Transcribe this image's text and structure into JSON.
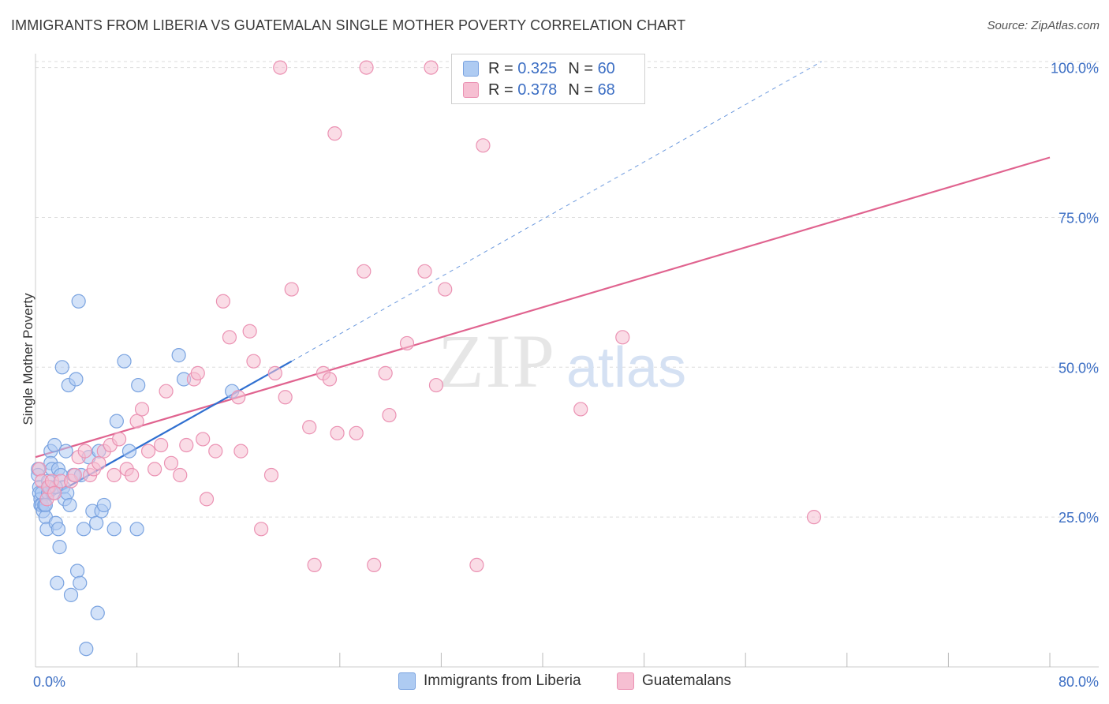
{
  "header": {
    "title": "IMMIGRANTS FROM LIBERIA VS GUATEMALAN SINGLE MOTHER POVERTY CORRELATION CHART",
    "source": "Source: ZipAtlas.com"
  },
  "watermark": {
    "zip": "ZIP",
    "atlas": "atlas"
  },
  "legend_top": [
    {
      "r_label": "R =",
      "r_value": "0.325",
      "n_label": "N =",
      "n_value": "60"
    },
    {
      "r_label": "R =",
      "r_value": "0.378",
      "n_label": "N =",
      "n_value": "68"
    }
  ],
  "legend_bottom": [
    {
      "label": "Immigrants from Liberia"
    },
    {
      "label": "Guatemalans"
    }
  ],
  "colors": {
    "blue_fill": "#aecbf2",
    "blue_stroke": "#7aa3e0",
    "blue_line": "#2f6fd0",
    "pink_fill": "#f6bfd2",
    "pink_stroke": "#eb92b3",
    "pink_line": "#e0638f",
    "axis_label": "#3d6fc4",
    "grid": "#dddddd"
  },
  "chart_data": {
    "type": "scatter",
    "title": "IMMIGRANTS FROM LIBERIA VS GUATEMALAN SINGLE MOTHER POVERTY CORRELATION CHART",
    "xlabel": "",
    "ylabel": "Single Mother Poverty",
    "xlim": [
      0,
      80
    ],
    "ylim": [
      0,
      101
    ],
    "x_tick_labels": [
      "0.0%",
      "80.0%"
    ],
    "y_ticks": [
      25,
      50,
      75,
      100
    ],
    "y_tick_labels": [
      "25.0%",
      "50.0%",
      "75.0%",
      "100.0%"
    ],
    "series": [
      {
        "name": "Immigrants from Liberia",
        "color": "blue",
        "r": 0.325,
        "n": 60,
        "trend": {
          "x": [
            0,
            20.2
          ],
          "y": [
            27.0,
            51.0
          ],
          "dashed_to": [
            62,
            101
          ]
        },
        "points": [
          [
            0.2,
            33
          ],
          [
            0.2,
            32
          ],
          [
            0.3,
            30
          ],
          [
            0.3,
            29
          ],
          [
            0.4,
            28
          ],
          [
            0.4,
            27
          ],
          [
            0.5,
            29
          ],
          [
            0.5,
            27
          ],
          [
            0.6,
            26
          ],
          [
            0.7,
            27
          ],
          [
            0.8,
            25
          ],
          [
            0.9,
            23
          ],
          [
            1.0,
            29
          ],
          [
            1.0,
            31
          ],
          [
            1.2,
            36
          ],
          [
            1.2,
            34
          ],
          [
            1.3,
            33
          ],
          [
            1.4,
            29
          ],
          [
            1.5,
            37
          ],
          [
            1.6,
            24
          ],
          [
            1.7,
            14
          ],
          [
            1.8,
            33
          ],
          [
            1.8,
            23
          ],
          [
            1.9,
            20
          ],
          [
            2.0,
            32
          ],
          [
            2.1,
            50
          ],
          [
            2.2,
            30
          ],
          [
            2.3,
            28
          ],
          [
            2.4,
            36
          ],
          [
            2.5,
            29
          ],
          [
            2.6,
            47
          ],
          [
            2.7,
            27
          ],
          [
            2.8,
            12
          ],
          [
            3.0,
            32
          ],
          [
            3.2,
            48
          ],
          [
            3.3,
            16
          ],
          [
            3.4,
            61
          ],
          [
            3.5,
            14
          ],
          [
            3.6,
            32
          ],
          [
            3.8,
            23
          ],
          [
            4.0,
            3
          ],
          [
            4.2,
            35
          ],
          [
            4.5,
            26
          ],
          [
            4.8,
            24
          ],
          [
            4.9,
            9
          ],
          [
            5.0,
            36
          ],
          [
            5.2,
            26
          ],
          [
            5.4,
            27
          ],
          [
            6.2,
            23
          ],
          [
            6.4,
            41
          ],
          [
            7.0,
            51
          ],
          [
            7.4,
            36
          ],
          [
            8.0,
            23
          ],
          [
            8.1,
            47
          ],
          [
            11.3,
            52
          ],
          [
            11.7,
            48
          ],
          [
            15.5,
            46
          ],
          [
            1.1,
            30
          ],
          [
            0.8,
            27
          ],
          [
            1.6,
            30
          ]
        ]
      },
      {
        "name": "Guatemalans",
        "color": "pink",
        "r": 0.378,
        "n": 68,
        "trend": {
          "x": [
            0,
            80
          ],
          "y": [
            35.0,
            85.0
          ]
        },
        "points": [
          [
            0.3,
            33
          ],
          [
            0.5,
            31
          ],
          [
            0.9,
            28
          ],
          [
            1.0,
            30
          ],
          [
            1.3,
            31
          ],
          [
            1.5,
            29
          ],
          [
            2.0,
            31
          ],
          [
            2.8,
            31
          ],
          [
            3.1,
            32
          ],
          [
            3.4,
            35
          ],
          [
            3.9,
            36
          ],
          [
            4.3,
            32
          ],
          [
            4.6,
            33
          ],
          [
            5.0,
            34
          ],
          [
            5.4,
            36
          ],
          [
            5.9,
            37
          ],
          [
            6.2,
            32
          ],
          [
            6.6,
            38
          ],
          [
            7.2,
            33
          ],
          [
            7.6,
            32
          ],
          [
            8.0,
            41
          ],
          [
            8.4,
            43
          ],
          [
            8.9,
            36
          ],
          [
            9.4,
            33
          ],
          [
            9.9,
            37
          ],
          [
            10.3,
            46
          ],
          [
            10.7,
            34
          ],
          [
            11.4,
            32
          ],
          [
            11.9,
            37
          ],
          [
            12.5,
            48
          ],
          [
            12.8,
            49
          ],
          [
            13.2,
            38
          ],
          [
            13.5,
            28
          ],
          [
            14.2,
            36
          ],
          [
            14.8,
            61
          ],
          [
            15.3,
            55
          ],
          [
            16.0,
            45
          ],
          [
            16.2,
            36
          ],
          [
            16.9,
            56
          ],
          [
            17.2,
            51
          ],
          [
            17.8,
            23
          ],
          [
            18.6,
            32
          ],
          [
            18.9,
            49
          ],
          [
            19.7,
            45
          ],
          [
            20.2,
            63
          ],
          [
            21.6,
            40
          ],
          [
            22.0,
            17
          ],
          [
            22.7,
            49
          ],
          [
            23.2,
            48
          ],
          [
            23.6,
            89
          ],
          [
            23.8,
            39
          ],
          [
            25.3,
            39
          ],
          [
            25.9,
            66
          ],
          [
            26.1,
            100
          ],
          [
            26.7,
            17
          ],
          [
            27.6,
            49
          ],
          [
            27.9,
            42
          ],
          [
            29.3,
            54
          ],
          [
            30.7,
            66
          ],
          [
            31.2,
            100
          ],
          [
            31.6,
            47
          ],
          [
            32.3,
            63
          ],
          [
            34.8,
            17
          ],
          [
            35.3,
            87
          ],
          [
            43.0,
            43
          ],
          [
            46.3,
            55
          ],
          [
            61.4,
            25
          ],
          [
            19.3,
            100
          ]
        ]
      }
    ]
  }
}
